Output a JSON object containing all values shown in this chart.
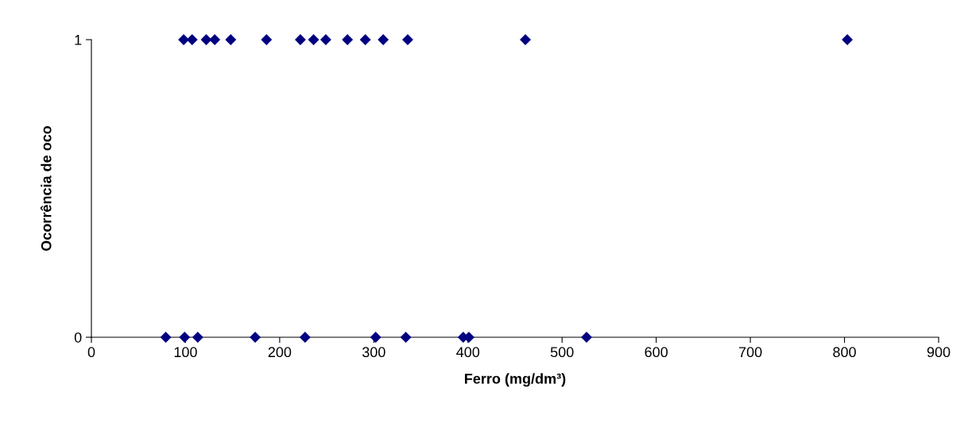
{
  "chart_data": {
    "type": "scatter",
    "xlabel": "Ferro (mg/dm³)",
    "ylabel": "Ocorrência de oco",
    "marker": "diamond",
    "grid": false,
    "legend": false,
    "xlim": [
      0,
      900
    ],
    "xticks": [
      0,
      100,
      200,
      300,
      400,
      500,
      600,
      700,
      800,
      900
    ],
    "ylim": [
      0,
      1
    ],
    "yticks": [
      0,
      1
    ],
    "series": [
      {
        "color": "#000080",
        "x": [
          98,
          107,
          122,
          131,
          148,
          186,
          222,
          236,
          249,
          272,
          291,
          310,
          336,
          461,
          803
        ],
        "values": [
          1,
          1,
          1,
          1,
          1,
          1,
          1,
          1,
          1,
          1,
          1,
          1,
          1,
          1,
          1
        ]
      },
      {
        "color": "#000080",
        "x": [
          79,
          99,
          113,
          174,
          227,
          302,
          334,
          395,
          401,
          526
        ],
        "values": [
          0,
          0,
          0,
          0,
          0,
          0,
          0,
          0,
          0,
          0
        ]
      }
    ]
  }
}
